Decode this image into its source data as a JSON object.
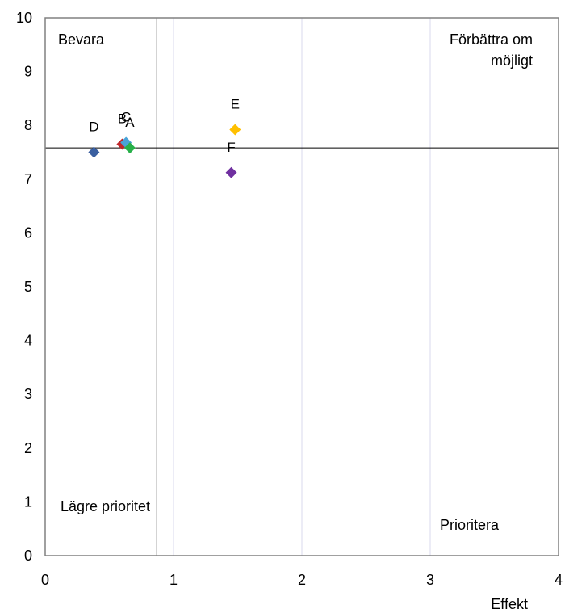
{
  "chart_data": {
    "type": "scatter",
    "title": "",
    "xlabel": "Effekt",
    "ylabel": "",
    "xlim": [
      0,
      4
    ],
    "ylim": [
      0,
      10
    ],
    "xticks": [
      "0",
      "1",
      "2",
      "3",
      "4"
    ],
    "yticks": [
      "0",
      "1",
      "2",
      "3",
      "4",
      "5",
      "6",
      "7",
      "8",
      "9",
      "10"
    ],
    "grid": true,
    "points": [
      {
        "label": "D",
        "x": 0.38,
        "y": 7.5,
        "color": "#3a5fa0"
      },
      {
        "label": "B",
        "x": 0.6,
        "y": 7.65,
        "color": "#c0282c"
      },
      {
        "label": "C",
        "x": 0.63,
        "y": 7.68,
        "color": "#4aa3d8"
      },
      {
        "label": "A",
        "x": 0.66,
        "y": 7.58,
        "color": "#28b04a"
      },
      {
        "label": "E",
        "x": 1.48,
        "y": 7.92,
        "color": "#ffc000"
      },
      {
        "label": "F",
        "x": 1.45,
        "y": 7.12,
        "color": "#7030a0"
      }
    ],
    "reference_lines": {
      "x": 0.87,
      "y": 7.58
    },
    "quadrant_labels": {
      "top_left": "Bevara",
      "top_right_line1": "Förbättra om",
      "top_right_line2": "möjligt",
      "bottom_left": "Lägre prioritet",
      "bottom_right": "Prioritera"
    }
  }
}
